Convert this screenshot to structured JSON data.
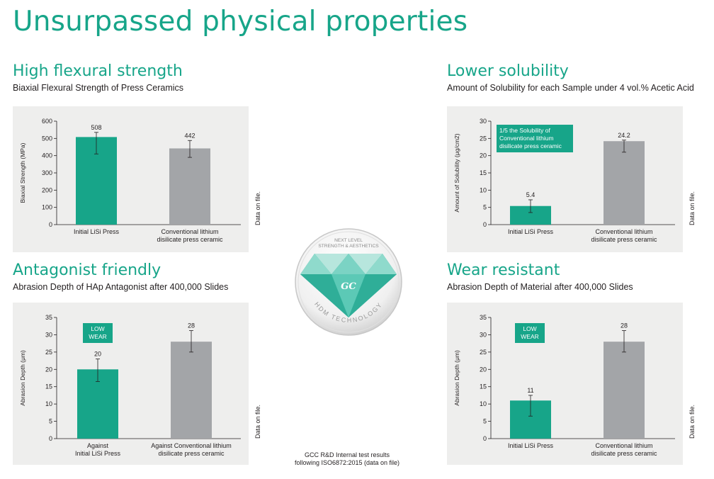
{
  "page_title": "Unsurpassed physical properties",
  "sections": [
    {
      "title": "High flexural strength",
      "subtitle": "Biaxial Flexural Strength of Press Ceramics",
      "note": "Data on file."
    },
    {
      "title": "Lower solubility",
      "subtitle": "Amount of Solubility for each Sample under 4 vol.% Acetic Acid",
      "note": "Data on file."
    },
    {
      "title": "Antagonist friendly",
      "subtitle": "Abrasion Depth of HAp Antagonist after 400,000 Slides",
      "note": "Data on file."
    },
    {
      "title": "Wear resistant",
      "subtitle": "Abrasion Depth of Material after 400,000 Slides",
      "note": "Data on file."
    }
  ],
  "badge": {
    "top_text_line1": "NEXT LEVEL",
    "top_text_line2": "STRENGTH & AESTHETICS",
    "logo_text": "GC",
    "arc_text": "HDM TECHNOLOGY"
  },
  "footnote": {
    "line1": "GCC R&D Internal test results",
    "line2": "following ISO6872:2015 (data on file)"
  },
  "colors": {
    "teal": "#17a589",
    "gray": "#a3a5a8",
    "panel": "#eeeeed"
  },
  "chart_data": [
    {
      "type": "bar",
      "categories": [
        [
          "Initial LiSi Press"
        ],
        [
          "Conventional lithium",
          "disilicate press ceramic"
        ]
      ],
      "values": [
        508,
        442
      ],
      "data_labels": [
        "508",
        "442"
      ],
      "error_low": [
        410,
        390
      ],
      "error_high": [
        535,
        488
      ],
      "ylabel": "Biaxial Strength (MPa)",
      "ylim": [
        0,
        600
      ],
      "yticks": [
        0,
        100,
        200,
        300,
        400,
        500,
        600
      ],
      "bar_colors": [
        "#17a589",
        "#a3a5a8"
      ]
    },
    {
      "type": "bar",
      "categories": [
        [
          "Initial LiSi Press"
        ],
        [
          "Conventional lithium",
          "disilicate press ceramic"
        ]
      ],
      "values": [
        5.4,
        24.2
      ],
      "data_labels": [
        "5.4",
        "24.2"
      ],
      "error_low": [
        3.5,
        21.0
      ],
      "error_high": [
        7.2,
        24.5
      ],
      "ylabel": "Amount of Solubility (μg/cm2)",
      "ylim": [
        0,
        30
      ],
      "yticks": [
        0,
        5,
        10,
        15,
        20,
        25,
        30
      ],
      "bar_colors": [
        "#17a589",
        "#a3a5a8"
      ],
      "annotation": [
        "1/5 the Solubility of",
        "Conventional lithium",
        "disilicate press ceramic"
      ]
    },
    {
      "type": "bar",
      "categories": [
        [
          "Against",
          "Initial LiSi Press"
        ],
        [
          "Against Conventional lithium",
          "disilicate press ceramic"
        ]
      ],
      "values": [
        20,
        28
      ],
      "data_labels": [
        "20",
        "28"
      ],
      "error_low": [
        16.5,
        25
      ],
      "error_high": [
        23,
        31.2
      ],
      "ylabel": "Abrasion Depth (μm)",
      "ylim": [
        0,
        35
      ],
      "yticks": [
        0,
        5,
        10,
        15,
        20,
        25,
        30,
        35
      ],
      "bar_colors": [
        "#17a589",
        "#a3a5a8"
      ],
      "annotation": [
        "LOW",
        "WEAR"
      ]
    },
    {
      "type": "bar",
      "categories": [
        [
          "Initial LiSi Press"
        ],
        [
          "Conventional lithium",
          "disilicate press ceramic"
        ]
      ],
      "values": [
        11,
        28
      ],
      "data_labels": [
        "11",
        "28"
      ],
      "error_low": [
        6.5,
        25
      ],
      "error_high": [
        12.5,
        31.2
      ],
      "ylabel": "Abrasion Depth (μm)",
      "ylim": [
        0,
        35
      ],
      "yticks": [
        0,
        5,
        10,
        15,
        20,
        25,
        30,
        35
      ],
      "bar_colors": [
        "#17a589",
        "#a3a5a8"
      ],
      "annotation": [
        "LOW",
        "WEAR"
      ]
    }
  ]
}
